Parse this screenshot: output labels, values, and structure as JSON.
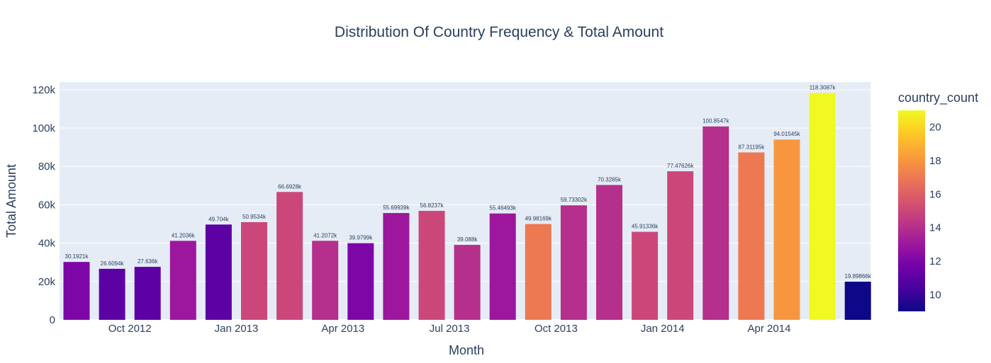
{
  "chart_data": {
    "type": "bar",
    "title": "Distribution Of Country Frequency & Total Amount",
    "xlabel": "Month",
    "ylabel": "Total Amount",
    "x": [
      "2012-08",
      "2012-09",
      "2012-10",
      "2012-11",
      "2012-12",
      "2013-01",
      "2013-02",
      "2013-03",
      "2013-04",
      "2013-05",
      "2013-06",
      "2013-07",
      "2013-08",
      "2013-09",
      "2013-10",
      "2013-11",
      "2013-12",
      "2014-01",
      "2014-02",
      "2014-03",
      "2014-04",
      "2014-05",
      "2014-06"
    ],
    "values": [
      30192.1,
      26609.4,
      27636,
      41203.6,
      49704,
      50953.4,
      66692.8,
      41207.2,
      39979.9,
      55699.39,
      56823.7,
      39088,
      55464.93,
      49981.69,
      59733.02,
      70328.5,
      45913.36,
      77476.26,
      100854.7,
      87311.95,
      94015.45,
      118308.7,
      19898.66
    ],
    "data_labels": [
      "30.1921k",
      "26.6094k",
      "27.636k",
      "41.2036k",
      "49.704k",
      "50.9534k",
      "66.6928k",
      "41.2072k",
      "39.9799k",
      "55.69939k",
      "56.8237k",
      "39.088k",
      "55.46493k",
      "49.98169k",
      "59.73302k",
      "70.3285k",
      "45.91336k",
      "77.47626k",
      "100.8547k",
      "87.31195k",
      "94.01545k",
      "118.3087k",
      "19.89866k"
    ],
    "color_values": [
      12,
      11,
      11,
      13,
      11,
      15,
      15,
      14,
      12,
      13,
      15,
      14,
      13,
      17,
      14,
      14,
      15,
      15,
      14,
      17,
      18,
      21,
      9
    ],
    "ylim": [
      0,
      124000
    ],
    "y_ticks": [
      0,
      20000,
      40000,
      60000,
      80000,
      100000,
      120000
    ],
    "y_tick_labels": [
      "0",
      "20k",
      "40k",
      "60k",
      "80k",
      "100k",
      "120k"
    ],
    "x_tick_labels": [
      "Oct 2012",
      "Jan 2013",
      "Apr 2013",
      "Jul 2013",
      "Oct 2013",
      "Jan 2014",
      "Apr 2014"
    ],
    "x_tick_positions": [
      "2012-10",
      "2013-01",
      "2013-04",
      "2013-07",
      "2013-10",
      "2014-01",
      "2014-04"
    ],
    "colorbar": {
      "title": "country_count",
      "range": [
        9,
        21
      ],
      "tick_values": [
        10,
        12,
        14,
        16,
        18,
        20
      ],
      "tick_labels": [
        "10",
        "12",
        "14",
        "16",
        "18",
        "20"
      ],
      "colorscale": [
        "#0d0887",
        "#46039f",
        "#7201a8",
        "#9c179e",
        "#bd3786",
        "#d8576b",
        "#ed7953",
        "#fb9f3a",
        "#fdca26",
        "#f0f921"
      ]
    },
    "grid": true,
    "plot_background": "#e5ecf6"
  }
}
